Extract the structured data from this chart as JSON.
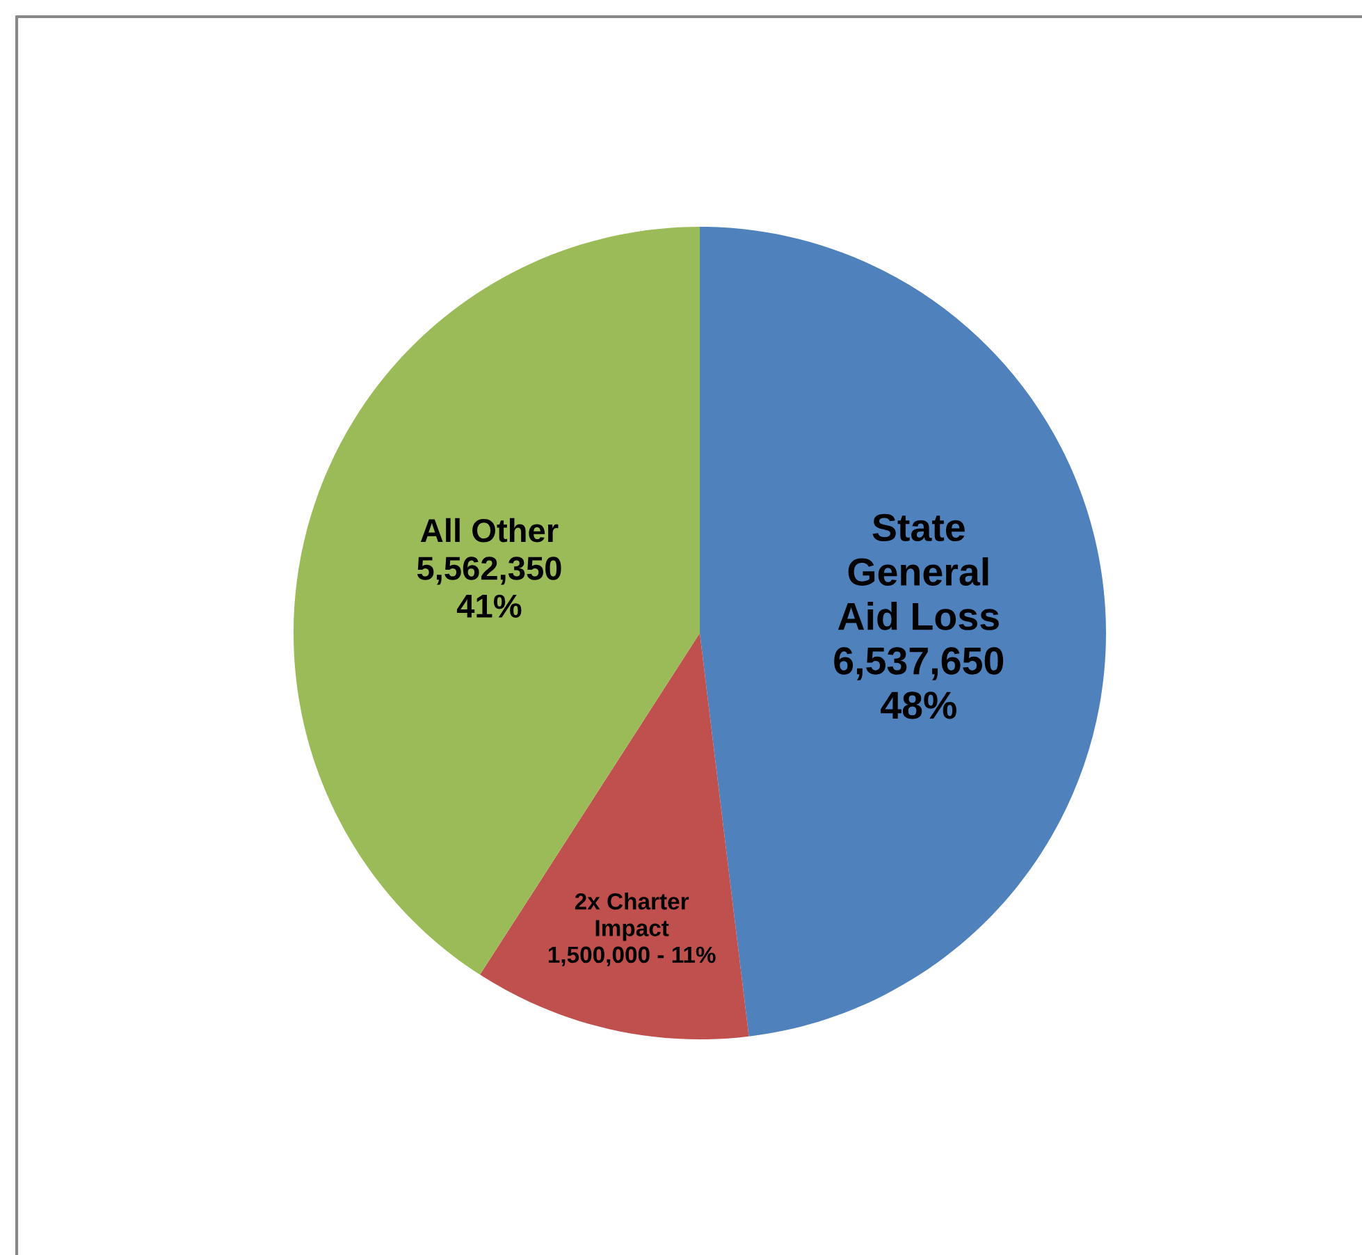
{
  "chart_data": {
    "type": "pie",
    "categories": [
      "State\nGeneral\nAid Loss",
      "2x Charter\nImpact",
      "All Other"
    ],
    "values": [
      6537650,
      1500000,
      5562350
    ],
    "value_labels": [
      "6,537,650\n48%",
      "1,500,000 - 11%",
      "5,562,350\n41%"
    ],
    "colors": [
      "#4f81bd",
      "#c0504d",
      "#9bbb59"
    ],
    "legend": false
  }
}
